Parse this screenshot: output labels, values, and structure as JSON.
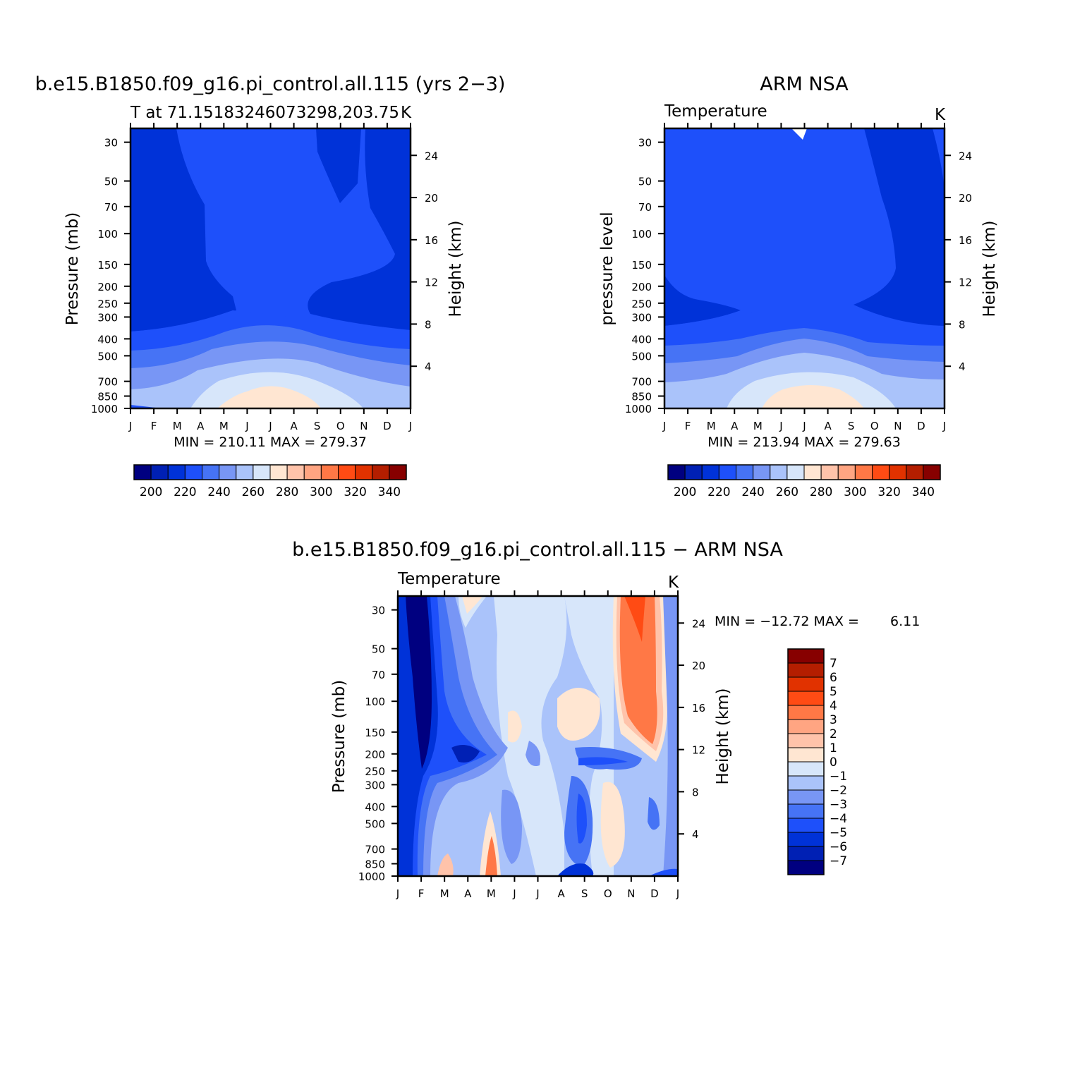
{
  "chart_data": [
    {
      "type": "heatmap",
      "title": "b.e15.B1850.f09_g16.pi_control.all.115 (yrs 2−3)",
      "subtitle": "T at 71.15183246073298,203.75",
      "units": "K",
      "ylabel": "Pressure (mb)",
      "ylabel_right": "Height (km)",
      "x_ticks": [
        "J",
        "F",
        "M",
        "A",
        "M",
        "J",
        "J",
        "A",
        "S",
        "O",
        "N",
        "D",
        "J"
      ],
      "y_ticks": [
        "30",
        "50",
        "70",
        "100",
        "150",
        "200",
        "250",
        "300",
        "400",
        "500",
        "700",
        "850",
        "1000"
      ],
      "y_ticks_right": [
        "24",
        "20",
        "16",
        "12",
        "8",
        "4"
      ],
      "min_max": "MIN = 210.11 MAX = 279.37",
      "levels": [
        200,
        210,
        220,
        230,
        240,
        250,
        260,
        270,
        280,
        290,
        300,
        310,
        320,
        330,
        340
      ],
      "colorbar_labels": [
        "200",
        "220",
        "240",
        "260",
        "280",
        "300",
        "320",
        "340"
      ],
      "grid": false
    },
    {
      "type": "heatmap",
      "title": "ARM NSA",
      "subtitle": "Temperature",
      "units": "K",
      "ylabel": "pressure level",
      "ylabel_right": "Height (km)",
      "x_ticks": [
        "J",
        "F",
        "M",
        "A",
        "M",
        "J",
        "J",
        "A",
        "S",
        "O",
        "N",
        "D",
        "J"
      ],
      "y_ticks": [
        "30",
        "50",
        "70",
        "100",
        "150",
        "200",
        "250",
        "300",
        "400",
        "500",
        "700",
        "850",
        "1000"
      ],
      "y_ticks_right": [
        "24",
        "20",
        "16",
        "12",
        "8",
        "4"
      ],
      "min_max": "MIN = 213.94 MAX = 279.63",
      "levels": [
        200,
        210,
        220,
        230,
        240,
        250,
        260,
        270,
        280,
        290,
        300,
        310,
        320,
        330,
        340
      ],
      "colorbar_labels": [
        "200",
        "220",
        "240",
        "260",
        "280",
        "300",
        "320",
        "340"
      ],
      "grid": false
    },
    {
      "type": "heatmap",
      "title": "b.e15.B1850.f09_g16.pi_control.all.115 − ARM NSA",
      "subtitle": "Temperature",
      "units": "K",
      "ylabel": "Pressure (mb)",
      "ylabel_right": "Height (km)",
      "x_ticks": [
        "J",
        "F",
        "M",
        "A",
        "M",
        "J",
        "J",
        "A",
        "S",
        "O",
        "N",
        "D",
        "J"
      ],
      "y_ticks": [
        "30",
        "50",
        "70",
        "100",
        "150",
        "200",
        "250",
        "300",
        "400",
        "500",
        "700",
        "850",
        "1000"
      ],
      "y_ticks_right": [
        "24",
        "20",
        "16",
        "12",
        "8",
        "4"
      ],
      "min_max_label": "MIN = −12.72 MAX =",
      "min_max_value": "6.11",
      "levels": [
        -7,
        -6,
        -5,
        -4,
        -3,
        -2,
        -1,
        0,
        1,
        2,
        3,
        4,
        5,
        6,
        7
      ],
      "colorbar_labels": [
        "7",
        "6",
        "5",
        "4",
        "3",
        "2",
        "1",
        "0",
        "−1",
        "−2",
        "−3",
        "−4",
        "−5",
        "−6",
        "−7"
      ],
      "grid": false
    }
  ],
  "palette": [
    "#000080",
    "#0020B4",
    "#0032D8",
    "#1E50FA",
    "#4673F5",
    "#7896F5",
    "#AAC3FA",
    "#D7E6FA",
    "#FFE6D2",
    "#FFC3AA",
    "#FFA582",
    "#FF7846",
    "#FF4B14",
    "#E13200",
    "#B41E00",
    "#870000"
  ],
  "colors": {
    "axis": "#000000",
    "background": "#ffffff"
  }
}
